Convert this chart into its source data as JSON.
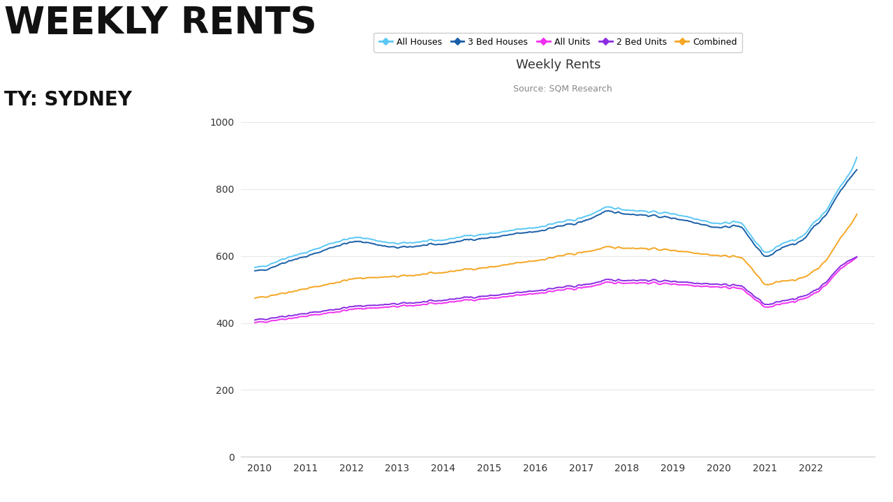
{
  "title": "Weekly Rents",
  "source": "Source: SQM Research",
  "big_title": "WEEKLY RENTS",
  "big_subtitle": "TY: SYDNEY",
  "xlim": [
    2009.6,
    2023.4
  ],
  "ylim": [
    0,
    1050
  ],
  "yticks": [
    0,
    200,
    400,
    600,
    800,
    1000
  ],
  "xtick_years": [
    2010,
    2011,
    2012,
    2013,
    2014,
    2015,
    2016,
    2017,
    2018,
    2019,
    2020,
    2021,
    2022
  ],
  "series_names": [
    "All Houses",
    "3 Bed Houses",
    "All Units",
    "2 Bed Units",
    "Combined"
  ],
  "series_colors": {
    "All Houses": "#5bc8f5",
    "3 Bed Houses": "#1a5fa8",
    "All Units": "#f030f0",
    "2 Bed Units": "#8b2be2",
    "Combined": "#f5a623"
  },
  "background_color": "#ffffff",
  "grid_color": "#e8e8e8",
  "text_color": "#333333",
  "title_fontsize": 13,
  "source_fontsize": 9,
  "legend_fontsize": 9,
  "axis_fontsize": 10,
  "big_title_fontsize": 38,
  "big_subtitle_fontsize": 20
}
